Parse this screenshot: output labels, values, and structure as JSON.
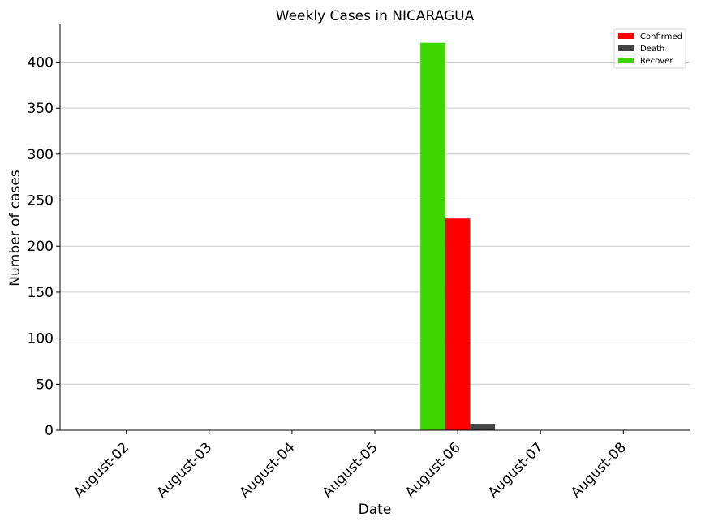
{
  "chart_data": {
    "type": "bar",
    "title": "Weekly Cases in NICARAGUA",
    "xlabel": "Date",
    "ylabel": "Number of cases",
    "categories": [
      "August-02",
      "August-03",
      "August-04",
      "August-05",
      "August-06",
      "August-07",
      "August-08"
    ],
    "series": [
      {
        "name": "Recover",
        "color": "#3ed600",
        "values": [
          0,
          0,
          0,
          0,
          421,
          0,
          0
        ]
      },
      {
        "name": "Confirmed",
        "color": "#ff0000",
        "values": [
          0,
          0,
          0,
          0,
          230,
          0,
          0
        ]
      },
      {
        "name": "Death",
        "color": "#454545",
        "values": [
          0,
          0,
          0,
          0,
          7,
          0,
          0
        ]
      }
    ],
    "legend_order": [
      "Confirmed",
      "Death",
      "Recover"
    ],
    "ylim": [
      0,
      441
    ],
    "yticks": [
      0,
      50,
      100,
      150,
      200,
      250,
      300,
      350,
      400
    ],
    "grid": "horizontal",
    "legend_position": "top-right"
  }
}
